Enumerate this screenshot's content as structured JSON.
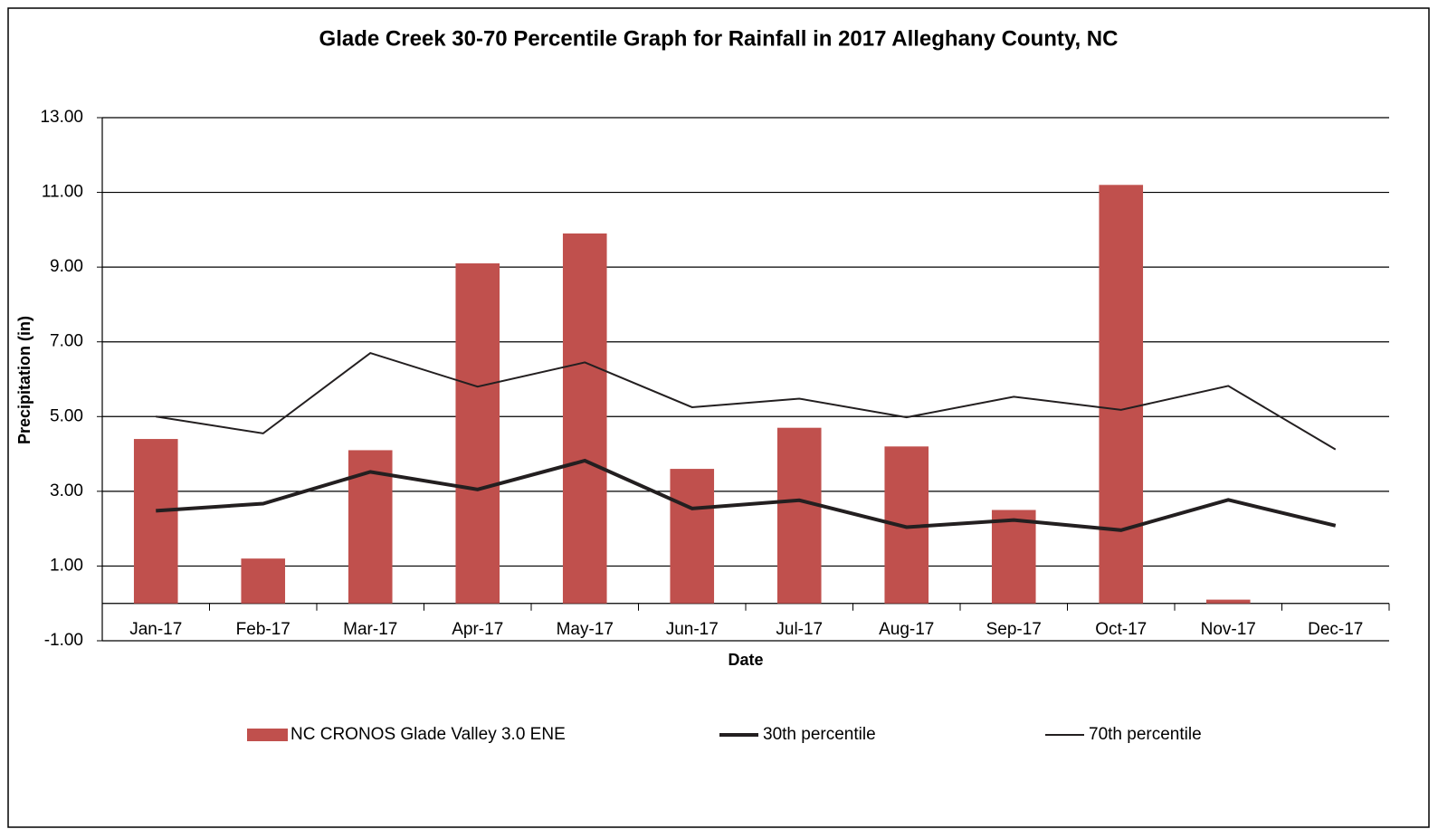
{
  "chart_data": {
    "type": "bar-line",
    "title": "Glade Creek 30-70 Percentile Graph for Rainfall in 2017 Alleghany County, NC",
    "x_label": "Date",
    "y_label": "Precipitation (in)",
    "categories": [
      "Jan-17",
      "Feb-17",
      "Mar-17",
      "Apr-17",
      "May-17",
      "Jun-17",
      "Jul-17",
      "Aug-17",
      "Sep-17",
      "Oct-17",
      "Nov-17",
      "Dec-17"
    ],
    "series": [
      {
        "name": "NC CRONOS Glade Valley 3.0 ENE",
        "type": "bar",
        "color": "#c0504d",
        "values": [
          4.4,
          1.2,
          4.1,
          9.1,
          9.9,
          3.6,
          4.7,
          4.2,
          2.5,
          11.2,
          0.1,
          null
        ]
      },
      {
        "name": "30th percentile",
        "type": "line",
        "color": "#231f20",
        "width": 4,
        "values": [
          2.48,
          2.67,
          3.52,
          3.05,
          3.82,
          2.54,
          2.76,
          2.04,
          2.23,
          1.96,
          2.77,
          2.08
        ]
      },
      {
        "name": "70th percentile",
        "type": "line",
        "color": "#231f20",
        "width": 2,
        "values": [
          5.0,
          4.55,
          6.7,
          5.8,
          6.45,
          5.25,
          5.48,
          4.98,
          5.53,
          5.18,
          5.82,
          4.12
        ]
      }
    ],
    "ylim": [
      -1,
      13
    ],
    "yticks": [
      {
        "value": -1,
        "label": "-1.00"
      },
      {
        "value": 1,
        "label": "1.00"
      },
      {
        "value": 3,
        "label": "3.00"
      },
      {
        "value": 5,
        "label": "5.00"
      },
      {
        "value": 7,
        "label": "7.00"
      },
      {
        "value": 9,
        "label": "9.00"
      },
      {
        "value": 11,
        "label": "11.00"
      },
      {
        "value": 13,
        "label": "13.00"
      }
    ],
    "grid": true,
    "legend": "bottom"
  }
}
